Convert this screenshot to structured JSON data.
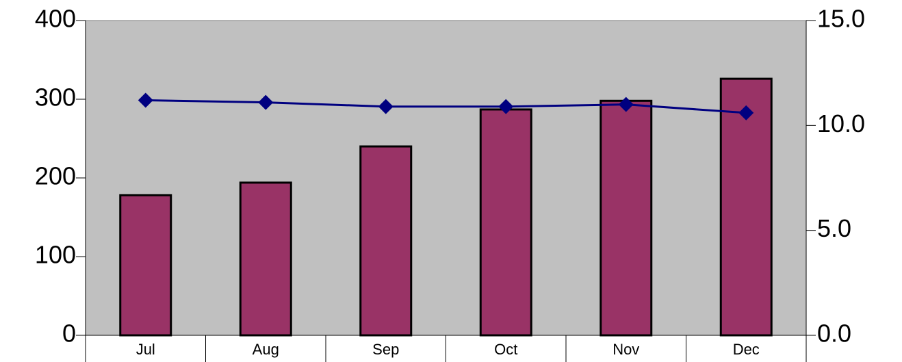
{
  "chart_data": {
    "type": "bar_line",
    "categories": [
      "Jul",
      "Aug",
      "Sep",
      "Oct",
      "Nov",
      "Dec"
    ],
    "series": [
      {
        "type": "bar",
        "color": "#993366",
        "values": [
          178,
          194,
          240,
          287,
          298,
          326
        ]
      },
      {
        "type": "line",
        "axis": "y2",
        "color": "#000080",
        "values": [
          11.2,
          11.1,
          10.9,
          10.9,
          11.0,
          10.6
        ]
      }
    ],
    "ylim": [
      0,
      400
    ],
    "yticks": [
      0,
      100,
      200,
      300,
      400
    ],
    "y2lim": [
      0,
      15
    ],
    "y2ticks": [
      {
        "value": 0,
        "label": "0.0"
      },
      {
        "value": 5,
        "label": "5.0"
      },
      {
        "value": 10,
        "label": "10.0"
      },
      {
        "value": 15,
        "label": "15.0"
      }
    ],
    "plot_background": "#c0c0c0"
  }
}
